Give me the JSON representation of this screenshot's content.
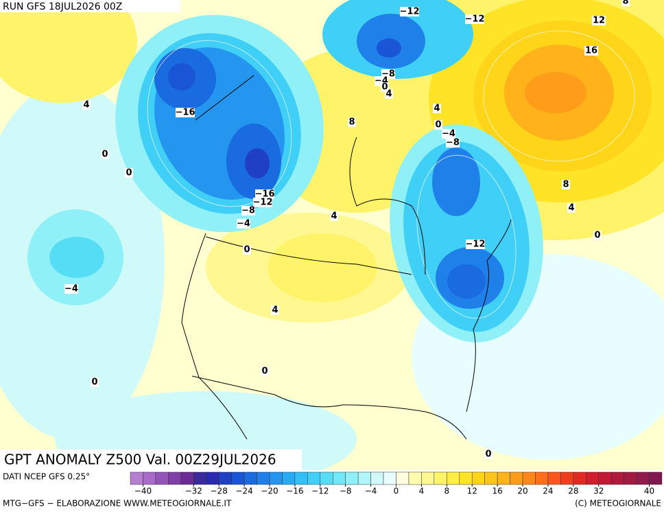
{
  "header": {
    "run": "RUN GFS 18JUL2026 00Z"
  },
  "map": {
    "title": "GPT ANOMALY Z500 Val. 00Z29JUL2026",
    "contour_labels": [
      "−12",
      "−12",
      "8",
      "12",
      "16",
      "4",
      "−16",
      "−8",
      "−4",
      "0",
      "4",
      "8",
      "4",
      "0",
      "−4",
      "−8",
      "0",
      "0",
      "8",
      "−16",
      "−12",
      "−8",
      "4",
      "4",
      "−4",
      "0",
      "−12",
      "0",
      "−4",
      "4",
      "0",
      "0",
      "0"
    ]
  },
  "legend": {
    "source": "DATI NCEP GFS 0.25°",
    "colors": [
      "#b57fd1",
      "#a96bc9",
      "#9454b8",
      "#7f3fa6",
      "#6a2b94",
      "#3a2a9e",
      "#2a2ab0",
      "#1f3fc4",
      "#1a55d6",
      "#1a6ae0",
      "#1f80ea",
      "#2596f0",
      "#2aaaf5",
      "#33bff7",
      "#40d0f7",
      "#55ddf5",
      "#70e8f5",
      "#90f0f7",
      "#b0f5f8",
      "#d0fafa",
      "#e8fdfd",
      "#ffffe0",
      "#fffcb0",
      "#fff890",
      "#fff36a",
      "#ffee44",
      "#ffe326",
      "#ffd51a",
      "#ffc51a",
      "#ffb21a",
      "#ff9d1a",
      "#ff861a",
      "#ff6e1a",
      "#f8561a",
      "#ee3f1e",
      "#e02a24",
      "#d01e2c",
      "#c01a34",
      "#b0183c",
      "#a01a44",
      "#901a4c",
      "#80184f"
    ],
    "ticks": [
      {
        "value": -40,
        "label": "−40"
      },
      {
        "value": -32,
        "label": "−32"
      },
      {
        "value": -28,
        "label": "−28"
      },
      {
        "value": -24,
        "label": "−24"
      },
      {
        "value": -20,
        "label": "−20"
      },
      {
        "value": -16,
        "label": "−16"
      },
      {
        "value": -12,
        "label": "−12"
      },
      {
        "value": -8,
        "label": "−8"
      },
      {
        "value": -4,
        "label": "−4"
      },
      0,
      4,
      8,
      12,
      16,
      20,
      24,
      28,
      32,
      40
    ],
    "range": [
      -42,
      42
    ]
  },
  "footer": {
    "left": "MTG−GFS − ELABORAZIONE WWW.METEOGIORNALE.IT",
    "right": "(C) METEOGIORNALE"
  }
}
